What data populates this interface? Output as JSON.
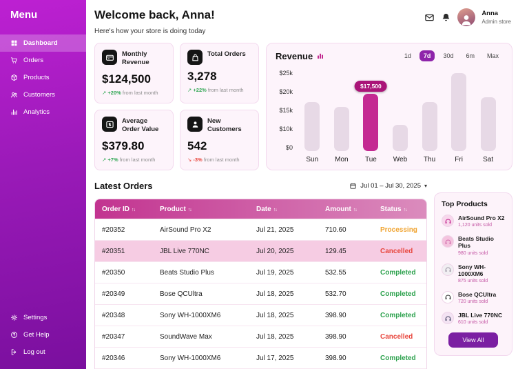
{
  "colors": {
    "accent": "#8e24aa",
    "sidebar_gradient_start": "#bd20d2",
    "sidebar_gradient_end": "#7a0f9e",
    "bar_default": "#e7d9e6",
    "bar_highlight": "#c42a92",
    "table_header_gradient": [
      "#c23390",
      "#db8cbd"
    ],
    "status": {
      "Processing": "#f0a32f",
      "Cancelled": "#e8453c",
      "Completed": "#2ba14c"
    }
  },
  "sidebar": {
    "title": "Menu",
    "items": [
      {
        "label": "Dashboard",
        "icon": "dashboard-icon",
        "active": true
      },
      {
        "label": "Orders",
        "icon": "cart-icon",
        "active": false
      },
      {
        "label": "Products",
        "icon": "box-icon",
        "active": false
      },
      {
        "label": "Customers",
        "icon": "people-icon",
        "active": false
      },
      {
        "label": "Analytics",
        "icon": "bar-chart-icon",
        "active": false
      }
    ],
    "footer_items": [
      {
        "label": "Settings",
        "icon": "gear-icon"
      },
      {
        "label": "Get Help",
        "icon": "help-icon"
      },
      {
        "label": "Log out",
        "icon": "logout-icon"
      }
    ]
  },
  "header": {
    "title": "Welcome back, Anna!",
    "subtitle": "Here's how your store is doing today",
    "icons": [
      "mail-icon",
      "bell-icon"
    ],
    "user": {
      "name": "Anna",
      "role": "Admin store"
    }
  },
  "stats": [
    {
      "label": "Monthly Revenue",
      "icon": "wallet-icon",
      "value": "$124,500",
      "trend_arrow": "↗",
      "trend_pct": "+20%",
      "trend_text": "from last month",
      "direction": "up"
    },
    {
      "label": "Total Orders",
      "icon": "bag-icon",
      "value": "3,278",
      "trend_arrow": "↗",
      "trend_pct": "+22%",
      "trend_text": "from last month",
      "direction": "up"
    },
    {
      "label": "Average Order Value",
      "icon": "dollar-card-icon",
      "value": "$379.80",
      "trend_arrow": "↗",
      "trend_pct": "+7%",
      "trend_text": "from last month",
      "direction": "up"
    },
    {
      "label": "New Customers",
      "icon": "person-icon",
      "value": "542",
      "trend_arrow": "↘",
      "trend_pct": "-3%",
      "trend_text": "from last month",
      "direction": "down"
    }
  ],
  "chart_data": {
    "type": "bar",
    "title": "Revenue",
    "categories": [
      "Sun",
      "Mon",
      "Tue",
      "Web",
      "Thu",
      "Fri",
      "Sat"
    ],
    "values": [
      15000,
      13500,
      17500,
      8000,
      15000,
      24000,
      16500
    ],
    "highlight_index": 2,
    "highlight_label": "$17,500",
    "y_ticks": [
      "$25k",
      "$20k",
      "$15k",
      "$10k",
      "$0"
    ],
    "ylim": [
      0,
      25000
    ],
    "grid": false,
    "legend": "none",
    "ranges": [
      "1d",
      "7d",
      "30d",
      "6m",
      "Max"
    ],
    "active_range": "7d"
  },
  "orders": {
    "title": "Latest Orders",
    "date_range": "Jul 01 – Jul 30, 2025",
    "chevron_icon": "▾",
    "sort_icon": "↑↓",
    "columns": [
      "Order ID",
      "Product",
      "Date",
      "Amount",
      "Status"
    ],
    "rows": [
      {
        "id": "#20352",
        "product": "AirSound Pro X2",
        "date": "Jul 21, 2025",
        "amount": "710.60",
        "status": "Processing",
        "selected": false
      },
      {
        "id": "#20351",
        "product": "JBL Live 770NC",
        "date": "Jul 20, 2025",
        "amount": "129.45",
        "status": "Cancelled",
        "selected": true
      },
      {
        "id": "#20350",
        "product": "Beats Studio Plus",
        "date": "Jul 19, 2025",
        "amount": "532.55",
        "status": "Completed",
        "selected": false
      },
      {
        "id": "#20349",
        "product": "Bose QCUltra",
        "date": "Jul 18, 2025",
        "amount": "532.70",
        "status": "Completed",
        "selected": false
      },
      {
        "id": "#20348",
        "product": "Sony WH-1000XM6",
        "date": "Jul 18, 2025",
        "amount": "398.90",
        "status": "Completed",
        "selected": false
      },
      {
        "id": "#20347",
        "product": "SoundWave Max",
        "date": "Jul 18, 2025",
        "amount": "398.90",
        "status": "Cancelled",
        "selected": false
      },
      {
        "id": "#20346",
        "product": "Sony WH-1000XM6",
        "date": "Jul 17, 2025",
        "amount": "398.90",
        "status": "Completed",
        "selected": false
      }
    ]
  },
  "top_products": {
    "title": "Top Products",
    "items": [
      {
        "name": "AirSound Pro X2",
        "units": "1,120 units sold",
        "icon": "headphones-icon",
        "icon_bg": "#f8d7ec",
        "icon_fg": "#c2298f"
      },
      {
        "name": "Beats Studio Plus",
        "units": "980 units sold",
        "icon": "headphones-icon",
        "icon_bg": "#f4c3de",
        "icon_fg": "#d36fae"
      },
      {
        "name": "Sony WH-1000XM6",
        "units": "875 units sold",
        "icon": "headphones-icon",
        "icon_bg": "#f1eef2",
        "icon_fg": "#9b96a3"
      },
      {
        "name": "Bose QCUltra",
        "units": "720 units sold",
        "icon": "headphones-icon",
        "icon_bg": "#ffffff",
        "icon_fg": "#3a3a3a"
      },
      {
        "name": "JBL Live 770NC",
        "units": "610 units sold",
        "icon": "headphones-icon",
        "icon_bg": "#f3e3f3",
        "icon_fg": "#474766"
      }
    ],
    "view_all_label": "View All"
  }
}
